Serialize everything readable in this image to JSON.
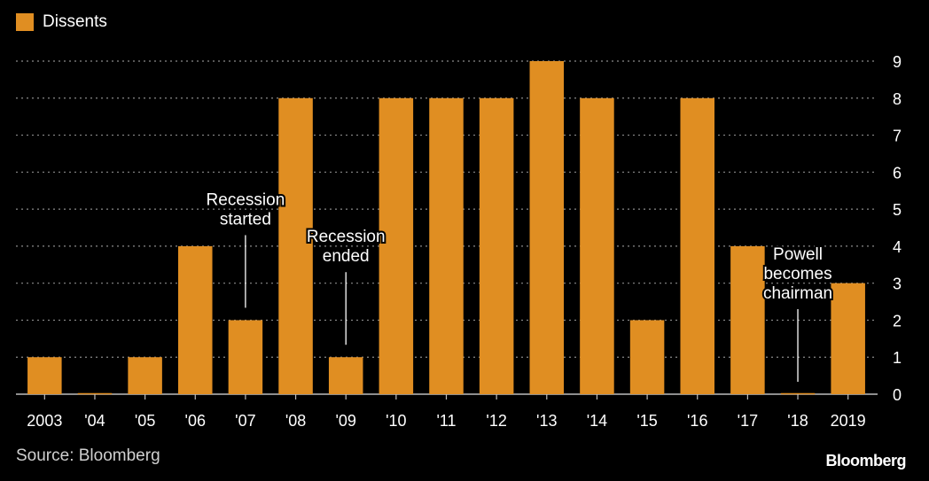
{
  "legend": {
    "label": "Dissents"
  },
  "source": "Source: Bloomberg",
  "brand": "Bloomberg",
  "colors": {
    "bar": "#e08e22",
    "background": "#000000",
    "grid": "#8a8a8a",
    "text": "#ffffff"
  },
  "chart_data": {
    "type": "bar",
    "categories": [
      "2003",
      "'04",
      "'05",
      "'06",
      "'07",
      "'08",
      "'09",
      "'10",
      "'11",
      "'12",
      "'13",
      "'14",
      "'15",
      "'16",
      "'17",
      "'18",
      "2019"
    ],
    "series": [
      {
        "name": "Dissents",
        "values": [
          1,
          0,
          1,
          4,
          2,
          8,
          1,
          8,
          8,
          8,
          9,
          8,
          2,
          8,
          4,
          0,
          3
        ]
      }
    ],
    "ylim": [
      0,
      9
    ],
    "yticks": [
      0,
      1,
      2,
      3,
      4,
      5,
      6,
      7,
      8,
      9
    ],
    "y_axis_side": "right",
    "grid": true,
    "legend_position": "top-left",
    "annotations": [
      {
        "category": "'07",
        "text": [
          "Recession",
          "started"
        ]
      },
      {
        "category": "'09",
        "text": [
          "Recession",
          "ended"
        ]
      },
      {
        "category": "'18",
        "text": [
          "Powell",
          "becomes",
          "chairman"
        ]
      }
    ]
  }
}
